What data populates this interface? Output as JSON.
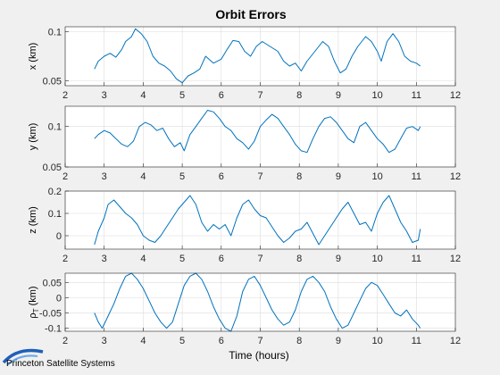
{
  "figure": {
    "title": "Orbit Errors",
    "xlabel": "Time (hours)",
    "logo_text": "Princeton Satellite Systems",
    "line_color": "#0072bd",
    "background_color": "#f0f0f0"
  },
  "chart_data": [
    {
      "type": "line",
      "name": "x-error",
      "ylabel": "x (km)",
      "xlim": [
        2,
        12
      ],
      "ylim": [
        0.045,
        0.105
      ],
      "yticks": [
        0.05,
        0.1
      ],
      "ytick_labels": [
        "0.05",
        "0.1"
      ],
      "xticks": [
        2,
        3,
        4,
        5,
        6,
        7,
        8,
        9,
        10,
        11,
        12
      ],
      "grid": true,
      "x": [
        2.75,
        2.85,
        3.0,
        3.15,
        3.3,
        3.45,
        3.55,
        3.7,
        3.8,
        3.95,
        4.1,
        4.25,
        4.4,
        4.55,
        4.7,
        4.85,
        5.0,
        5.15,
        5.3,
        5.45,
        5.6,
        5.8,
        6.0,
        6.15,
        6.3,
        6.45,
        6.6,
        6.75,
        6.9,
        7.05,
        7.25,
        7.45,
        7.6,
        7.75,
        7.9,
        8.05,
        8.2,
        8.4,
        8.6,
        8.75,
        8.9,
        9.05,
        9.2,
        9.35,
        9.5,
        9.7,
        9.85,
        10.0,
        10.1,
        10.25,
        10.4,
        10.55,
        10.7,
        10.85,
        11.0,
        11.1
      ],
      "y": [
        0.062,
        0.07,
        0.075,
        0.078,
        0.074,
        0.082,
        0.09,
        0.095,
        0.103,
        0.098,
        0.09,
        0.075,
        0.068,
        0.065,
        0.06,
        0.052,
        0.048,
        0.055,
        0.058,
        0.062,
        0.075,
        0.068,
        0.072,
        0.082,
        0.091,
        0.09,
        0.08,
        0.075,
        0.085,
        0.09,
        0.085,
        0.08,
        0.07,
        0.065,
        0.068,
        0.06,
        0.07,
        0.08,
        0.09,
        0.085,
        0.07,
        0.058,
        0.062,
        0.075,
        0.085,
        0.095,
        0.09,
        0.08,
        0.07,
        0.09,
        0.098,
        0.09,
        0.075,
        0.07,
        0.068,
        0.065
      ]
    },
    {
      "type": "line",
      "name": "y-error",
      "ylabel": "y (km)",
      "xlim": [
        2,
        12
      ],
      "ylim": [
        0.05,
        0.125
      ],
      "yticks": [
        0.05,
        0.1
      ],
      "ytick_labels": [
        "0.05",
        "0.1"
      ],
      "xticks": [
        2,
        3,
        4,
        5,
        6,
        7,
        8,
        9,
        10,
        11,
        12
      ],
      "grid": true,
      "x": [
        2.75,
        2.85,
        3.0,
        3.15,
        3.3,
        3.45,
        3.6,
        3.75,
        3.9,
        4.05,
        4.2,
        4.35,
        4.5,
        4.65,
        4.8,
        4.95,
        5.05,
        5.2,
        5.35,
        5.5,
        5.65,
        5.8,
        5.95,
        6.1,
        6.25,
        6.4,
        6.55,
        6.7,
        6.85,
        7.0,
        7.15,
        7.3,
        7.45,
        7.6,
        7.75,
        7.9,
        8.05,
        8.2,
        8.35,
        8.5,
        8.65,
        8.8,
        8.95,
        9.1,
        9.25,
        9.4,
        9.55,
        9.7,
        9.85,
        10.0,
        10.15,
        10.3,
        10.45,
        10.6,
        10.75,
        10.9,
        11.05,
        11.1
      ],
      "y": [
        0.085,
        0.09,
        0.095,
        0.092,
        0.085,
        0.078,
        0.075,
        0.082,
        0.1,
        0.105,
        0.102,
        0.095,
        0.098,
        0.085,
        0.075,
        0.08,
        0.07,
        0.09,
        0.1,
        0.11,
        0.12,
        0.118,
        0.11,
        0.1,
        0.095,
        0.085,
        0.08,
        0.072,
        0.082,
        0.1,
        0.108,
        0.115,
        0.11,
        0.1,
        0.09,
        0.078,
        0.07,
        0.068,
        0.085,
        0.1,
        0.11,
        0.112,
        0.105,
        0.095,
        0.085,
        0.08,
        0.1,
        0.105,
        0.095,
        0.085,
        0.078,
        0.068,
        0.072,
        0.085,
        0.098,
        0.1,
        0.095,
        0.1
      ]
    },
    {
      "type": "line",
      "name": "z-error",
      "ylabel": "z (km)",
      "xlim": [
        2,
        12
      ],
      "ylim": [
        -0.06,
        0.2
      ],
      "yticks": [
        0,
        0.1,
        0.2
      ],
      "ytick_labels": [
        "0",
        "0.1",
        "0.2"
      ],
      "xticks": [
        2,
        3,
        4,
        5,
        6,
        7,
        8,
        9,
        10,
        11,
        12
      ],
      "grid": true,
      "x": [
        2.75,
        2.85,
        3.0,
        3.1,
        3.25,
        3.4,
        3.55,
        3.7,
        3.85,
        4.0,
        4.15,
        4.3,
        4.45,
        4.6,
        4.75,
        4.9,
        5.05,
        5.2,
        5.35,
        5.5,
        5.65,
        5.8,
        5.95,
        6.1,
        6.25,
        6.4,
        6.55,
        6.7,
        6.85,
        7.0,
        7.15,
        7.3,
        7.45,
        7.6,
        7.75,
        7.9,
        8.05,
        8.2,
        8.35,
        8.5,
        8.65,
        8.8,
        8.95,
        9.1,
        9.25,
        9.4,
        9.55,
        9.7,
        9.85,
        10.0,
        10.15,
        10.3,
        10.45,
        10.6,
        10.75,
        10.9,
        11.05,
        11.1
      ],
      "y": [
        -0.04,
        0.02,
        0.08,
        0.14,
        0.16,
        0.13,
        0.1,
        0.08,
        0.05,
        0.0,
        -0.02,
        -0.03,
        0.0,
        0.04,
        0.08,
        0.12,
        0.15,
        0.18,
        0.14,
        0.06,
        0.02,
        0.05,
        0.03,
        0.05,
        0.0,
        0.08,
        0.14,
        0.16,
        0.12,
        0.09,
        0.08,
        0.04,
        0.0,
        -0.03,
        -0.01,
        0.02,
        0.03,
        0.06,
        0.01,
        -0.04,
        0.0,
        0.04,
        0.08,
        0.12,
        0.15,
        0.1,
        0.05,
        0.06,
        0.02,
        0.1,
        0.15,
        0.18,
        0.12,
        0.06,
        0.02,
        -0.03,
        -0.02,
        0.03
      ]
    },
    {
      "type": "line",
      "name": "rho-T-error",
      "ylabel": "ρ_T (km)",
      "ylabel_main": "ρ",
      "ylabel_sub": "T",
      "ylabel_unit": " (km)",
      "xlim": [
        2,
        12
      ],
      "ylim": [
        -0.11,
        0.08
      ],
      "yticks": [
        -0.1,
        -0.05,
        0,
        0.05
      ],
      "ytick_labels": [
        "-0.1",
        "-0.05",
        "0",
        "0.05"
      ],
      "xticks": [
        2,
        3,
        4,
        5,
        6,
        7,
        8,
        9,
        10,
        11,
        12
      ],
      "grid": true,
      "x": [
        2.75,
        2.85,
        2.95,
        3.1,
        3.25,
        3.4,
        3.55,
        3.7,
        3.85,
        4.0,
        4.15,
        4.3,
        4.45,
        4.6,
        4.75,
        4.9,
        5.05,
        5.2,
        5.35,
        5.5,
        5.65,
        5.8,
        5.95,
        6.1,
        6.25,
        6.4,
        6.55,
        6.7,
        6.85,
        7.0,
        7.15,
        7.3,
        7.45,
        7.6,
        7.75,
        7.9,
        8.05,
        8.2,
        8.35,
        8.5,
        8.65,
        8.8,
        8.95,
        9.1,
        9.25,
        9.4,
        9.55,
        9.7,
        9.85,
        10.0,
        10.15,
        10.3,
        10.45,
        10.6,
        10.75,
        10.9,
        11.05,
        11.1
      ],
      "y": [
        -0.05,
        -0.08,
        -0.1,
        -0.06,
        -0.02,
        0.03,
        0.07,
        0.08,
        0.06,
        0.03,
        -0.01,
        -0.05,
        -0.08,
        -0.1,
        -0.08,
        -0.02,
        0.04,
        0.07,
        0.08,
        0.06,
        0.02,
        -0.03,
        -0.07,
        -0.1,
        -0.11,
        -0.06,
        0.02,
        0.06,
        0.07,
        0.04,
        0.0,
        -0.04,
        -0.07,
        -0.09,
        -0.08,
        -0.04,
        0.02,
        0.06,
        0.07,
        0.05,
        0.02,
        -0.03,
        -0.07,
        -0.1,
        -0.09,
        -0.05,
        -0.01,
        0.03,
        0.05,
        0.04,
        0.01,
        -0.02,
        -0.05,
        -0.06,
        -0.04,
        -0.07,
        -0.09,
        -0.1
      ]
    }
  ]
}
